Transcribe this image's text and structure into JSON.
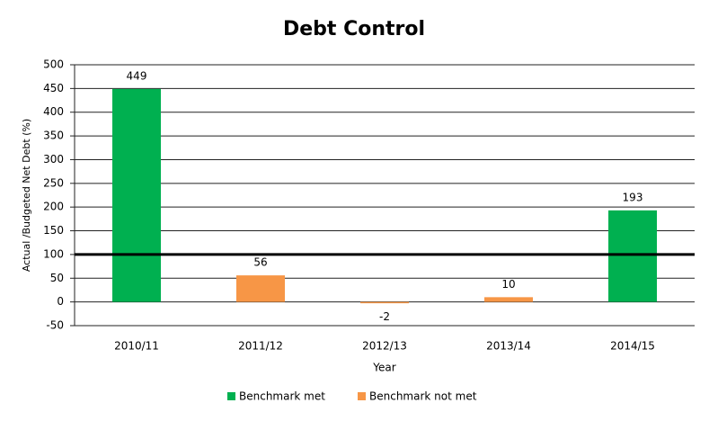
{
  "chart_data": {
    "type": "bar",
    "title": "Debt Control",
    "x_label": "Year",
    "y_label": "Actual /Budgeted Net Debt (%)",
    "categories": [
      "2010/11",
      "2011/12",
      "2012/13",
      "2013/14",
      "2014/15"
    ],
    "series": [
      {
        "name": "Benchmark met",
        "color": "#00b050",
        "values": [
          449,
          null,
          null,
          null,
          193
        ]
      },
      {
        "name": "Benchmark not met",
        "color": "#f79646",
        "values": [
          null,
          56,
          -2,
          10,
          null
        ]
      }
    ],
    "reference_line": 100,
    "ylim": [
      -50,
      500
    ],
    "yticks": [
      -50,
      0,
      50,
      100,
      150,
      200,
      250,
      300,
      350,
      400,
      450,
      500
    ],
    "grid": true,
    "legend": "bottom"
  }
}
